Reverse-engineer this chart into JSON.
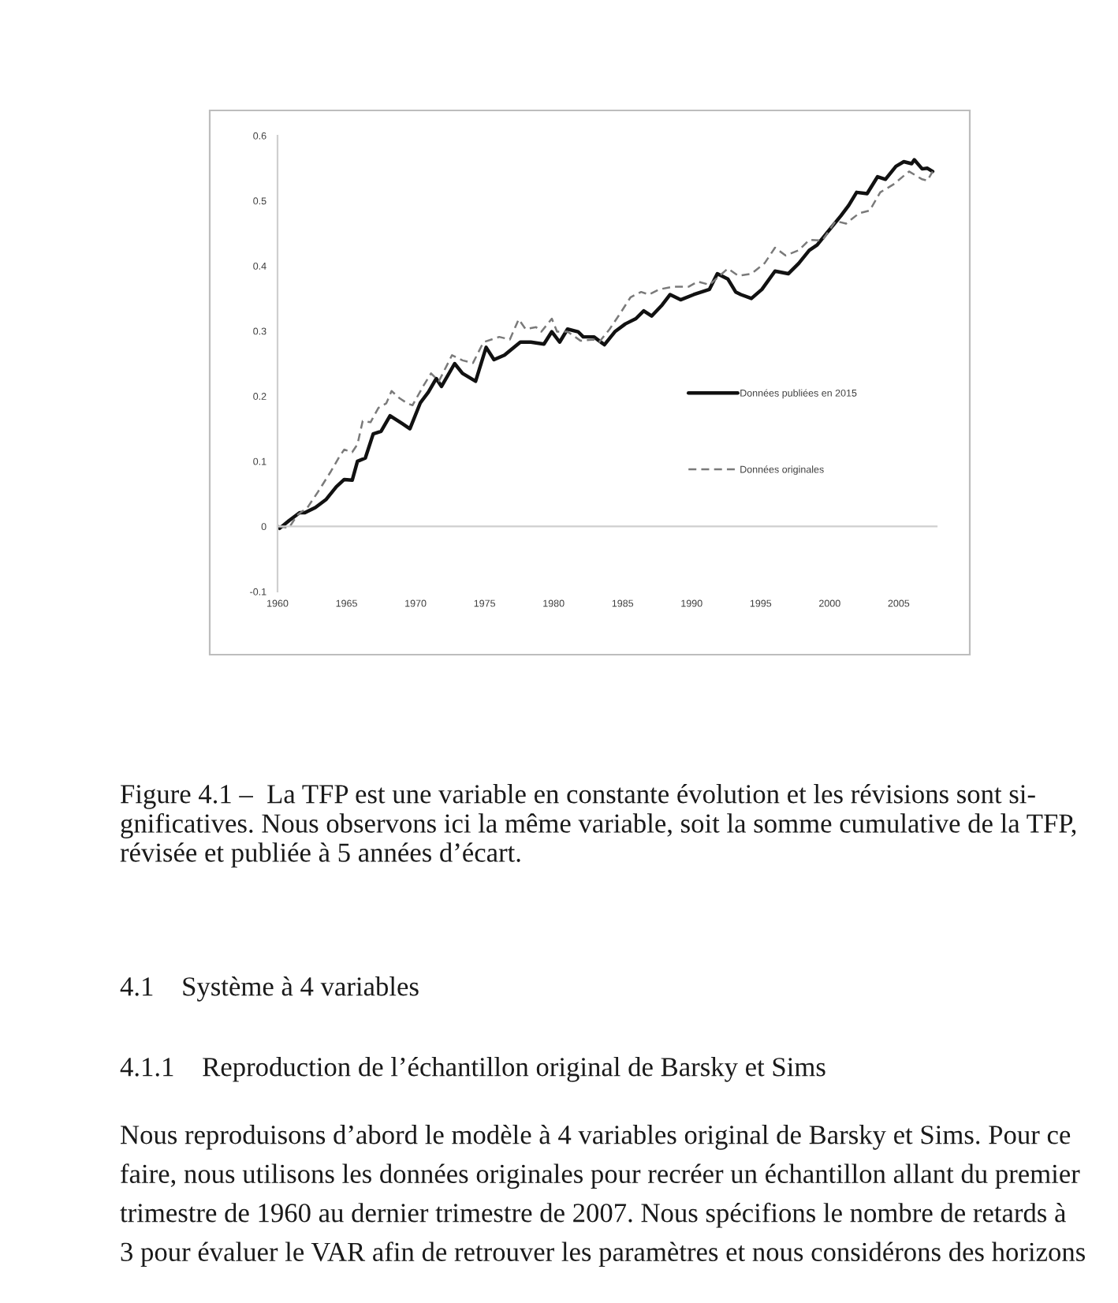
{
  "chart_data": {
    "type": "line",
    "xlim": [
      1960,
      2007.75
    ],
    "xticks": [
      1960,
      1965,
      1970,
      1975,
      1980,
      1985,
      1990,
      1995,
      2000,
      2005
    ],
    "ylim": [
      -0.1,
      0.6
    ],
    "yticks": [
      -0.1,
      0,
      0.1,
      0.2,
      0.3,
      0.4,
      0.5,
      0.6
    ],
    "legend": "right",
    "series": [
      {
        "name": "Données publiées en 2015",
        "color": "#111111",
        "line_style": "solid",
        "x": [
          1960.0,
          1960.15,
          1960.84,
          1961.6,
          1961.98,
          1962.74,
          1963.5,
          1964.26,
          1964.83,
          1965.41,
          1965.79,
          1966.36,
          1966.93,
          1967.5,
          1968.15,
          1969.02,
          1969.59,
          1970.35,
          1970.92,
          1971.5,
          1971.88,
          1972.83,
          1973.4,
          1974.35,
          1975.11,
          1975.68,
          1976.44,
          1977.59,
          1978.35,
          1979.3,
          1979.87,
          1980.44,
          1981.01,
          1981.77,
          1982.15,
          1982.92,
          1983.68,
          1984.44,
          1985.2,
          1985.96,
          1986.53,
          1987.1,
          1987.86,
          1988.44,
          1989.2,
          1990.15,
          1991.29,
          1991.86,
          1992.62,
          1993.19,
          1993.57,
          1994.33,
          1995.09,
          1996.04,
          1997.0,
          1997.76,
          1998.52,
          1999.09,
          1999.85,
          2000.81,
          2001.38,
          2001.95,
          2002.71,
          2003.47,
          2004.04,
          2004.8,
          2005.37,
          2005.94,
          2006.13,
          2006.7,
          2007.08,
          2007.46
        ],
        "values": [
          0,
          -0.003,
          0.009,
          0.021,
          0.021,
          0.029,
          0.041,
          0.061,
          0.072,
          0.071,
          0.1,
          0.105,
          0.142,
          0.146,
          0.17,
          0.158,
          0.15,
          0.19,
          0.206,
          0.227,
          0.215,
          0.25,
          0.235,
          0.223,
          0.275,
          0.256,
          0.263,
          0.283,
          0.283,
          0.28,
          0.299,
          0.283,
          0.303,
          0.299,
          0.291,
          0.291,
          0.279,
          0.299,
          0.311,
          0.319,
          0.331,
          0.323,
          0.34,
          0.356,
          0.348,
          0.356,
          0.364,
          0.388,
          0.38,
          0.36,
          0.356,
          0.35,
          0.364,
          0.392,
          0.388,
          0.404,
          0.424,
          0.432,
          0.452,
          0.477,
          0.493,
          0.513,
          0.511,
          0.537,
          0.533,
          0.553,
          0.56,
          0.557,
          0.563,
          0.549,
          0.55,
          0.545
        ]
      },
      {
        "name": "Données originales",
        "color": "#7a7a7a",
        "line_style": "dashed",
        "x": [
          1960.08,
          1960.84,
          1961.41,
          1962.17,
          1962.93,
          1963.88,
          1964.45,
          1964.83,
          1965.41,
          1965.79,
          1966.17,
          1966.74,
          1967.31,
          1967.88,
          1968.26,
          1968.83,
          1969.4,
          1969.78,
          1970.54,
          1971.12,
          1971.69,
          1972.64,
          1973.4,
          1974.16,
          1974.92,
          1976.06,
          1976.83,
          1977.47,
          1977.97,
          1978.73,
          1979.11,
          1979.87,
          1980.25,
          1981.01,
          1981.96,
          1982.92,
          1983.3,
          1984.06,
          1984.82,
          1985.58,
          1986.34,
          1986.91,
          1987.67,
          1988.63,
          1989.77,
          1990.45,
          1991.29,
          1992.62,
          1993.38,
          1994.33,
          1995.28,
          1996.04,
          1996.81,
          1997.76,
          1998.52,
          1999.47,
          2000.43,
          2001.19,
          2002.14,
          2002.9,
          2003.66,
          2004.61,
          2005.75,
          2006.7,
          2007.08,
          2007.46
        ],
        "values": [
          0,
          -0.002,
          0.017,
          0.029,
          0.053,
          0.085,
          0.106,
          0.118,
          0.114,
          0.126,
          0.162,
          0.16,
          0.182,
          0.189,
          0.208,
          0.197,
          0.189,
          0.186,
          0.215,
          0.235,
          0.223,
          0.263,
          0.255,
          0.251,
          0.283,
          0.291,
          0.287,
          0.318,
          0.303,
          0.306,
          0.299,
          0.319,
          0.299,
          0.299,
          0.285,
          0.287,
          0.283,
          0.303,
          0.327,
          0.352,
          0.36,
          0.356,
          0.364,
          0.368,
          0.368,
          0.376,
          0.371,
          0.396,
          0.385,
          0.388,
          0.404,
          0.428,
          0.416,
          0.424,
          0.44,
          0.439,
          0.469,
          0.465,
          0.481,
          0.485,
          0.513,
          0.525,
          0.545,
          0.533,
          0.531,
          0.545
        ]
      }
    ],
    "annotations": [
      "Figure 4.1 –  La TFP est une variable en constante évolution et les révisions sont si-\ngnificatives. Nous observons ici la même variable, soit la somme cumulative de la TFP,\nrévisée et publiée à 5 années d’écart.",
      "4.1    Système à 4 variables",
      "4.1.1    Reproduction de l’échantillon original de Barsky et Sims",
      "Nous reproduisons d’abord le modèle à 4 variables original de Barsky et Sims. Pour ce\nfaire, nous utilisons les données originales pour recréer un échantillon allant du premier\ntrimestre de 1960 au dernier trimestre de 2007. Nous spécifions le nombre de retards à\n3 pour évaluer le VAR afin de retrouver les paramètres et nous considérons des horizons"
    ]
  }
}
